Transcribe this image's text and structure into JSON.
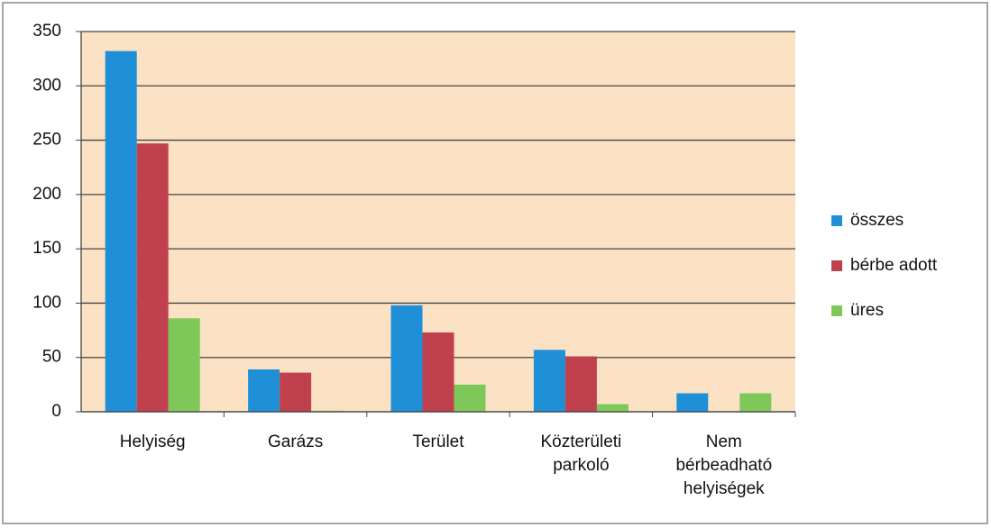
{
  "chart_data": {
    "type": "bar",
    "categories": [
      "Helyiség",
      "Garázs",
      "Terület",
      "Közterületi parkoló",
      "Nem bérbeadható helyiségek"
    ],
    "series": [
      {
        "name": "összes",
        "color": "#1f8fd8",
        "values": [
          332,
          39,
          98,
          57,
          17
        ]
      },
      {
        "name": "bérbe adott",
        "color": "#c0414d",
        "values": [
          247,
          36,
          73,
          51,
          0
        ]
      },
      {
        "name": "üres",
        "color": "#7ec85a",
        "values": [
          86,
          1,
          25,
          7,
          17
        ]
      }
    ],
    "ylim": [
      0,
      350
    ],
    "yticks": [
      0,
      50,
      100,
      150,
      200,
      250,
      300,
      350
    ],
    "grid": true,
    "legend": "right"
  }
}
